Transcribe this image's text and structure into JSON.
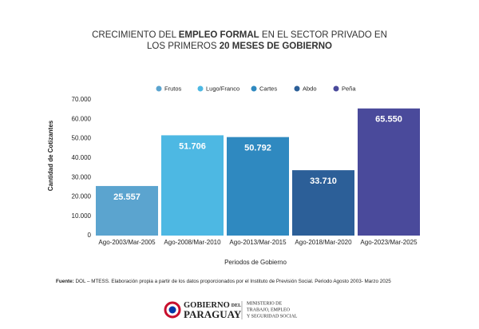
{
  "chart_data": {
    "type": "bar",
    "title": [
      [
        {
          "text": "CRECIMIENTO DEL ",
          "bold": false
        },
        {
          "text": "EMPLEO FORMAL",
          "bold": true
        },
        {
          "text": " EN EL SECTOR PRIVADO EN",
          "bold": false
        }
      ],
      [
        {
          "text": "LOS PRIMEROS ",
          "bold": false
        },
        {
          "text": "20 MESES DE GOBIERNO",
          "bold": true
        }
      ]
    ],
    "legend": [
      "Frutos",
      "Lugo/Franco",
      "Cartes",
      "Abdo",
      "Peña"
    ],
    "categories": [
      "Ago-2003/Mar-2005",
      "Ago-2008/Mar-2010",
      "Ago-2013/Mar-2015",
      "Ago-2018/Mar-2020",
      "Ago-2023/Mar-2025"
    ],
    "values": [
      25557,
      51706,
      50792,
      33710,
      65550
    ],
    "value_labels": [
      "25.557",
      "51.706",
      "50.792",
      "33.710",
      "65.550"
    ],
    "colors": [
      "#5ba4cf",
      "#4db8e3",
      "#2f89c0",
      "#2c5f98",
      "#4a4a9b"
    ],
    "ylim": [
      0,
      70000
    ],
    "yticks": [
      0,
      {
        "value": 10000,
        "label": "10.000"
      },
      {
        "value": 20000,
        "label": "20.000"
      },
      {
        "value": 30000,
        "label": "30.000"
      },
      {
        "value": 40000,
        "label": "40.000"
      },
      {
        "value": 50000,
        "label": "50.000"
      },
      {
        "value": 60000,
        "label": "60.000"
      },
      {
        "value": 70000,
        "label": "70.000"
      }
    ],
    "ylabel": "Cantidad de Cotizantes",
    "xlabel": "Periodos de Gobierno",
    "grid": false
  },
  "source": {
    "label": "Fuente:",
    "text": " DOL – MTESS. Elaboración propia a partir de los datos proporcionados por el Instituto de Previsión Social. Periodo Agosto 2003- Marzo 2025"
  },
  "footer": {
    "gov": [
      "GOBIERNO",
      "DEL",
      "PARAGUAY"
    ],
    "ministry": [
      "MINISTERIO DE",
      "TRABAJO, EMPLEO",
      "Y SEGURIDAD SOCIAL"
    ]
  }
}
